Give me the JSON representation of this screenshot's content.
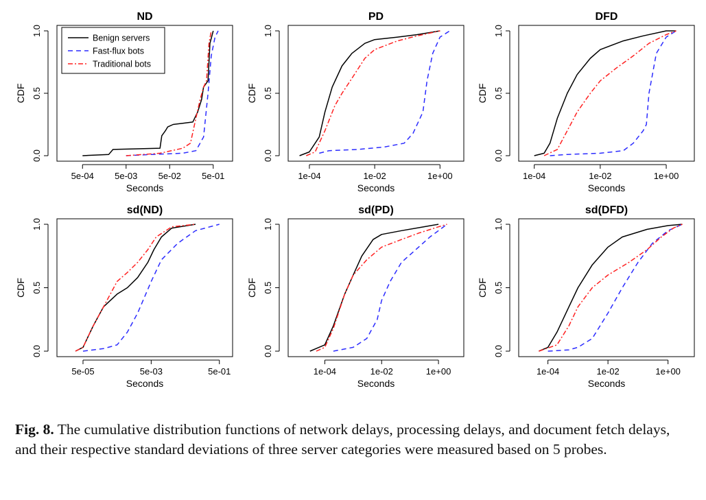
{
  "caption": {
    "label": "Fig. 8.",
    "text": " The cumulative distribution functions of network delays, processing delays, and document fetch delays, and their respective standard deviations of three server categories were measured based on 5 probes."
  },
  "legend": {
    "entries": [
      {
        "name": "Benign servers",
        "color": "#000000",
        "dash": "solid"
      },
      {
        "name": "Fast-flux bots",
        "color": "#2b2bff",
        "dash": "dashed"
      },
      {
        "name": "Traditional bots",
        "color": "#ff2020",
        "dash": "dotdash"
      }
    ]
  },
  "chart_data": [
    {
      "type": "line",
      "title": "ND",
      "xlabel": "Seconds",
      "ylabel": "CDF",
      "x_scale": "log",
      "xlim": [
        0.0002,
        0.9
      ],
      "ylim": [
        0,
        1
      ],
      "x_ticks": [
        0.0005,
        0.005,
        0.05,
        0.5
      ],
      "x_tick_labels": [
        "5e-04",
        "5e-03",
        "5e-02",
        "5e-01"
      ],
      "y_ticks": [
        0,
        0.5,
        1.0
      ],
      "y_tick_labels": [
        "0.0",
        "0.5",
        "1.0"
      ],
      "legend_position": "top-left",
      "series": [
        {
          "name": "Benign servers",
          "points": [
            [
              0.0005,
              0.0
            ],
            [
              0.002,
              0.01
            ],
            [
              0.0025,
              0.05
            ],
            [
              0.03,
              0.06
            ],
            [
              0.033,
              0.16
            ],
            [
              0.04,
              0.2
            ],
            [
              0.045,
              0.23
            ],
            [
              0.06,
              0.25
            ],
            [
              0.1,
              0.26
            ],
            [
              0.17,
              0.27
            ],
            [
              0.22,
              0.35
            ],
            [
              0.27,
              0.45
            ],
            [
              0.3,
              0.55
            ],
            [
              0.38,
              0.6
            ],
            [
              0.42,
              0.9
            ],
            [
              0.5,
              1.0
            ]
          ]
        },
        {
          "name": "Fast-flux bots",
          "points": [
            [
              0.005,
              0.0
            ],
            [
              0.02,
              0.01
            ],
            [
              0.1,
              0.02
            ],
            [
              0.2,
              0.04
            ],
            [
              0.3,
              0.15
            ],
            [
              0.38,
              0.5
            ],
            [
              0.45,
              0.8
            ],
            [
              0.55,
              0.95
            ],
            [
              0.65,
              1.0
            ]
          ]
        },
        {
          "name": "Traditional bots",
          "points": [
            [
              0.005,
              0.0
            ],
            [
              0.03,
              0.02
            ],
            [
              0.1,
              0.06
            ],
            [
              0.15,
              0.1
            ],
            [
              0.2,
              0.3
            ],
            [
              0.25,
              0.45
            ],
            [
              0.3,
              0.55
            ],
            [
              0.35,
              0.6
            ],
            [
              0.4,
              0.9
            ],
            [
              0.45,
              1.0
            ]
          ]
        }
      ]
    },
    {
      "type": "line",
      "title": "PD",
      "xlabel": "Seconds",
      "ylabel": "CDF",
      "x_scale": "log",
      "xlim": [
        4e-05,
        3
      ],
      "ylim": [
        0,
        1
      ],
      "x_ticks": [
        0.0001,
        0.01,
        1
      ],
      "x_tick_labels": [
        "1e-04",
        "1e-02",
        "1e+00"
      ],
      "y_ticks": [
        0,
        0.5,
        1.0
      ],
      "y_tick_labels": [
        "0.0",
        "0.5",
        "1.0"
      ],
      "series": [
        {
          "name": "Benign servers",
          "points": [
            [
              5e-05,
              0.0
            ],
            [
              0.0001,
              0.03
            ],
            [
              0.0002,
              0.15
            ],
            [
              0.0003,
              0.35
            ],
            [
              0.0005,
              0.55
            ],
            [
              0.001,
              0.72
            ],
            [
              0.002,
              0.82
            ],
            [
              0.005,
              0.9
            ],
            [
              0.01,
              0.93
            ],
            [
              0.05,
              0.95
            ],
            [
              0.2,
              0.97
            ],
            [
              1.0,
              1.0
            ]
          ]
        },
        {
          "name": "Fast-flux bots",
          "points": [
            [
              0.0002,
              0.02
            ],
            [
              0.0004,
              0.04
            ],
            [
              0.003,
              0.05
            ],
            [
              0.02,
              0.07
            ],
            [
              0.08,
              0.1
            ],
            [
              0.15,
              0.18
            ],
            [
              0.3,
              0.35
            ],
            [
              0.4,
              0.6
            ],
            [
              0.6,
              0.82
            ],
            [
              1.0,
              0.95
            ],
            [
              2.0,
              1.0
            ]
          ]
        },
        {
          "name": "Traditional bots",
          "points": [
            [
              8e-05,
              0.0
            ],
            [
              0.00015,
              0.03
            ],
            [
              0.0003,
              0.2
            ],
            [
              0.0006,
              0.4
            ],
            [
              0.001,
              0.5
            ],
            [
              0.002,
              0.62
            ],
            [
              0.005,
              0.78
            ],
            [
              0.01,
              0.85
            ],
            [
              0.05,
              0.92
            ],
            [
              0.2,
              0.96
            ],
            [
              1.0,
              1.0
            ]
          ]
        }
      ]
    },
    {
      "type": "line",
      "title": "DFD",
      "xlabel": "Seconds",
      "ylabel": "CDF",
      "x_scale": "log",
      "xlim": [
        6e-05,
        4
      ],
      "ylim": [
        0,
        1
      ],
      "x_ticks": [
        0.0001,
        0.01,
        1
      ],
      "x_tick_labels": [
        "1e-04",
        "1e-02",
        "1e+00"
      ],
      "y_ticks": [
        0,
        0.5,
        1.0
      ],
      "y_tick_labels": [
        "0.0",
        "0.5",
        "1.0"
      ],
      "series": [
        {
          "name": "Benign servers",
          "points": [
            [
              0.0001,
              0.0
            ],
            [
              0.0002,
              0.02
            ],
            [
              0.0003,
              0.1
            ],
            [
              0.0005,
              0.3
            ],
            [
              0.001,
              0.5
            ],
            [
              0.002,
              0.65
            ],
            [
              0.005,
              0.78
            ],
            [
              0.01,
              0.85
            ],
            [
              0.05,
              0.92
            ],
            [
              0.2,
              0.96
            ],
            [
              1.0,
              1.0
            ],
            [
              2.0,
              1.0
            ]
          ]
        },
        {
          "name": "Fast-flux bots",
          "points": [
            [
              0.0003,
              0.0
            ],
            [
              0.001,
              0.01
            ],
            [
              0.01,
              0.02
            ],
            [
              0.05,
              0.04
            ],
            [
              0.1,
              0.1
            ],
            [
              0.2,
              0.2
            ],
            [
              0.25,
              0.25
            ],
            [
              0.3,
              0.5
            ],
            [
              0.5,
              0.82
            ],
            [
              1.0,
              0.95
            ],
            [
              2.0,
              1.0
            ]
          ]
        },
        {
          "name": "Traditional bots",
          "points": [
            [
              0.0002,
              0.0
            ],
            [
              0.0005,
              0.05
            ],
            [
              0.001,
              0.2
            ],
            [
              0.002,
              0.35
            ],
            [
              0.005,
              0.5
            ],
            [
              0.01,
              0.6
            ],
            [
              0.03,
              0.7
            ],
            [
              0.1,
              0.8
            ],
            [
              0.3,
              0.9
            ],
            [
              1.0,
              0.97
            ],
            [
              2.0,
              1.0
            ]
          ]
        }
      ]
    },
    {
      "type": "line",
      "title": "sd(ND)",
      "xlabel": "Seconds",
      "ylabel": "CDF",
      "x_scale": "log",
      "xlim": [
        1.5e-05,
        0.7
      ],
      "ylim": [
        0,
        1
      ],
      "x_ticks": [
        5e-05,
        0.005,
        0.5
      ],
      "x_tick_labels": [
        "5e-05",
        "5e-03",
        "5e-01"
      ],
      "y_ticks": [
        0,
        0.5,
        1.0
      ],
      "y_tick_labels": [
        "0.0",
        "0.5",
        "1.0"
      ],
      "series": [
        {
          "name": "Benign servers",
          "points": [
            [
              3e-05,
              0.0
            ],
            [
              5e-05,
              0.03
            ],
            [
              0.0001,
              0.2
            ],
            [
              0.0002,
              0.35
            ],
            [
              0.0005,
              0.45
            ],
            [
              0.001,
              0.5
            ],
            [
              0.002,
              0.58
            ],
            [
              0.004,
              0.7
            ],
            [
              0.006,
              0.8
            ],
            [
              0.01,
              0.9
            ],
            [
              0.02,
              0.97
            ],
            [
              0.1,
              1.0
            ]
          ]
        },
        {
          "name": "Fast-flux bots",
          "points": [
            [
              5e-05,
              0.0
            ],
            [
              0.0002,
              0.02
            ],
            [
              0.0005,
              0.05
            ],
            [
              0.001,
              0.15
            ],
            [
              0.002,
              0.3
            ],
            [
              0.005,
              0.55
            ],
            [
              0.01,
              0.72
            ],
            [
              0.03,
              0.85
            ],
            [
              0.1,
              0.95
            ],
            [
              0.5,
              1.0
            ]
          ]
        },
        {
          "name": "Traditional bots",
          "points": [
            [
              3e-05,
              0.0
            ],
            [
              5e-05,
              0.03
            ],
            [
              0.0001,
              0.2
            ],
            [
              0.0002,
              0.35
            ],
            [
              0.0005,
              0.55
            ],
            [
              0.001,
              0.62
            ],
            [
              0.002,
              0.7
            ],
            [
              0.004,
              0.8
            ],
            [
              0.007,
              0.9
            ],
            [
              0.02,
              0.98
            ],
            [
              0.1,
              1.0
            ]
          ]
        }
      ]
    },
    {
      "type": "line",
      "title": "sd(PD)",
      "xlabel": "Seconds",
      "ylabel": "CDF",
      "x_scale": "log",
      "xlim": [
        1e-05,
        4
      ],
      "ylim": [
        0,
        1
      ],
      "x_ticks": [
        0.0001,
        0.01,
        1
      ],
      "x_tick_labels": [
        "1e-04",
        "1e-02",
        "1e+00"
      ],
      "y_ticks": [
        0,
        0.5,
        1.0
      ],
      "y_tick_labels": [
        "0.0",
        "0.5",
        "1.0"
      ],
      "series": [
        {
          "name": "Benign servers",
          "points": [
            [
              3e-05,
              0.0
            ],
            [
              0.0001,
              0.05
            ],
            [
              0.0002,
              0.2
            ],
            [
              0.0005,
              0.45
            ],
            [
              0.001,
              0.6
            ],
            [
              0.002,
              0.75
            ],
            [
              0.005,
              0.88
            ],
            [
              0.01,
              0.92
            ],
            [
              0.05,
              0.95
            ],
            [
              0.3,
              0.98
            ],
            [
              1.0,
              1.0
            ]
          ]
        },
        {
          "name": "Fast-flux bots",
          "points": [
            [
              0.0002,
              0.0
            ],
            [
              0.001,
              0.03
            ],
            [
              0.003,
              0.1
            ],
            [
              0.007,
              0.25
            ],
            [
              0.01,
              0.4
            ],
            [
              0.02,
              0.55
            ],
            [
              0.05,
              0.7
            ],
            [
              0.2,
              0.82
            ],
            [
              0.5,
              0.9
            ],
            [
              1.0,
              0.95
            ],
            [
              2.0,
              1.0
            ]
          ]
        },
        {
          "name": "Traditional bots",
          "points": [
            [
              5e-05,
              0.0
            ],
            [
              0.0001,
              0.03
            ],
            [
              0.0002,
              0.18
            ],
            [
              0.0005,
              0.45
            ],
            [
              0.001,
              0.6
            ],
            [
              0.003,
              0.72
            ],
            [
              0.01,
              0.82
            ],
            [
              0.05,
              0.88
            ],
            [
              0.2,
              0.93
            ],
            [
              1.0,
              0.98
            ],
            [
              2.0,
              1.0
            ]
          ]
        }
      ]
    },
    {
      "type": "line",
      "title": "sd(DFD)",
      "xlabel": "Seconds",
      "ylabel": "CDF",
      "x_scale": "log",
      "xlim": [
        2e-05,
        4
      ],
      "ylim": [
        0,
        1
      ],
      "x_ticks": [
        0.0001,
        0.01,
        1
      ],
      "x_tick_labels": [
        "1e-04",
        "1e-02",
        "1e+00"
      ],
      "y_ticks": [
        0,
        0.5,
        1.0
      ],
      "y_tick_labels": [
        "0.0",
        "0.5",
        "1.0"
      ],
      "series": [
        {
          "name": "Benign servers",
          "points": [
            [
              5e-05,
              0.0
            ],
            [
              0.0001,
              0.03
            ],
            [
              0.0002,
              0.15
            ],
            [
              0.0005,
              0.35
            ],
            [
              0.001,
              0.5
            ],
            [
              0.003,
              0.68
            ],
            [
              0.01,
              0.82
            ],
            [
              0.03,
              0.9
            ],
            [
              0.2,
              0.96
            ],
            [
              1.0,
              0.99
            ],
            [
              3.0,
              1.0
            ]
          ]
        },
        {
          "name": "Fast-flux bots",
          "points": [
            [
              0.0001,
              0.0
            ],
            [
              0.0005,
              0.01
            ],
            [
              0.001,
              0.03
            ],
            [
              0.003,
              0.1
            ],
            [
              0.01,
              0.3
            ],
            [
              0.03,
              0.5
            ],
            [
              0.1,
              0.7
            ],
            [
              0.3,
              0.85
            ],
            [
              1.0,
              0.95
            ],
            [
              3.0,
              1.0
            ]
          ]
        },
        {
          "name": "Traditional bots",
          "points": [
            [
              5e-05,
              0.0
            ],
            [
              0.0002,
              0.05
            ],
            [
              0.0005,
              0.2
            ],
            [
              0.001,
              0.35
            ],
            [
              0.003,
              0.5
            ],
            [
              0.01,
              0.6
            ],
            [
              0.05,
              0.7
            ],
            [
              0.2,
              0.8
            ],
            [
              0.6,
              0.9
            ],
            [
              1.5,
              0.97
            ],
            [
              3.0,
              1.0
            ]
          ]
        }
      ]
    }
  ]
}
